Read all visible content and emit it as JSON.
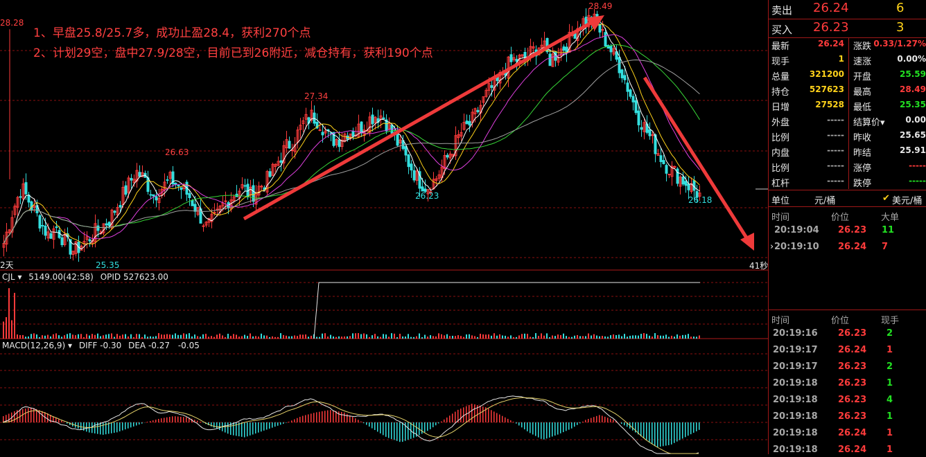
{
  "annotations": {
    "line1": "1、早盘25.8/25.7多，成功止盈28.4，获利270个点",
    "line2": "2、计划29空，盘中27.9/28空，目前已到26附近，减仓持有，获利190个点"
  },
  "chart_labels": {
    "left_top": "28.28",
    "left_bottom": "2天",
    "p2663": "26.63",
    "p2535": "25.35",
    "p2734": "27.34",
    "p2623": "26.23",
    "p2849": "28.49",
    "p2618": "26.18",
    "countdown": "41秒"
  },
  "volume_panel": {
    "name": "CJL",
    "dropdown": "▾",
    "value": "5149.00(42:58)",
    "opid": "OPID 527623.00"
  },
  "macd_panel": {
    "name": "MACD(12,26,9)",
    "dropdown": "▾",
    "diff": "DIFF -0.30",
    "dea": "DEA -0.27",
    "macd": "-0.05"
  },
  "colors": {
    "up": "#ff3b3b",
    "down": "#33dede",
    "ma5": "#ffffff",
    "ma10": "#ffd21a",
    "ma20": "#e040e0",
    "ma40": "#38d838",
    "ma60": "#a0a0a0",
    "arrow": "#ee3a3a",
    "grid": "#8b1111"
  },
  "chart_data": {
    "type": "candlestick",
    "high": 28.49,
    "low": 25.35,
    "annotated_points": [
      {
        "label": "28.28",
        "value": 28.28
      },
      {
        "label": "26.63",
        "value": 26.63
      },
      {
        "label": "25.35",
        "value": 25.35
      },
      {
        "label": "27.34",
        "value": 27.34
      },
      {
        "label": "26.23",
        "value": 26.23
      },
      {
        "label": "28.49",
        "value": 28.49
      },
      {
        "label": "26.18",
        "value": 26.18
      }
    ],
    "close_path": [
      25.6,
      26.0,
      26.3,
      26.1,
      25.9,
      25.7,
      25.8,
      25.6,
      25.5,
      25.6,
      25.7,
      25.8,
      25.9,
      26.1,
      26.3,
      26.5,
      26.4,
      26.2,
      26.3,
      26.4,
      26.3,
      26.2,
      26.0,
      25.8,
      25.9,
      26.1,
      26.2,
      26.3,
      26.2,
      26.3,
      26.4,
      26.6,
      26.8,
      26.9,
      27.1,
      27.2,
      27.1,
      26.9,
      26.9,
      27.0,
      27.0,
      27.1,
      27.2,
      27.2,
      27.0,
      26.8,
      26.6,
      26.4,
      26.3,
      26.4,
      26.6,
      26.8,
      27.0,
      27.1,
      27.3,
      27.5,
      27.6,
      27.8,
      27.9,
      27.9,
      28.0,
      28.1,
      27.9,
      28.0,
      28.1,
      28.3,
      28.4,
      28.4,
      28.2,
      28.0,
      27.8,
      27.5,
      27.2,
      27.0,
      26.8,
      26.6,
      26.5,
      26.4,
      26.3,
      26.2
    ],
    "macd_hist": [
      0.05,
      0.1,
      0.12,
      0.08,
      0.02,
      -0.04,
      -0.08,
      -0.1,
      -0.08,
      -0.04,
      0.0,
      0.03,
      0.05,
      0.04,
      0.0,
      -0.05,
      -0.1,
      -0.12,
      -0.08,
      -0.04,
      0.0,
      0.05,
      0.08,
      0.1,
      0.08,
      0.02,
      -0.05,
      -0.12,
      -0.16,
      -0.12,
      -0.06,
      0.02,
      0.1,
      0.15,
      0.12,
      0.06,
      0.0,
      -0.08,
      -0.14,
      -0.1,
      -0.05,
      0.02,
      0.06,
      0.02,
      -0.04,
      -0.12,
      -0.2,
      -0.18,
      -0.12,
      -0.06
    ]
  },
  "sidebar": {
    "sell": {
      "label": "卖出",
      "price": "26.24",
      "qty": "6"
    },
    "buy": {
      "label": "买入",
      "price": "26.23",
      "qty": "3"
    },
    "stats": [
      {
        "l": "最新",
        "v": "26.24",
        "vc": "red",
        "r": "涨跌",
        "rv": "0.33/1.27%",
        "rc": "red"
      },
      {
        "l": "现手",
        "v": "1",
        "vc": "yellow",
        "r": "速涨",
        "rv": "0.00%",
        "rc": "white"
      },
      {
        "l": "总量",
        "v": "321200",
        "vc": "yellow",
        "r": "开盘",
        "rv": "25.59",
        "rc": "green"
      },
      {
        "l": "持仓",
        "v": "527623",
        "vc": "yellow",
        "r": "最高",
        "rv": "28.49",
        "rc": "red"
      },
      {
        "l": "日增",
        "v": "27528",
        "vc": "yellow",
        "r": "最低",
        "rv": "25.35",
        "rc": "green"
      },
      {
        "l": "外盘",
        "v": "-----",
        "vc": "grey",
        "r": "结算价▾",
        "rv": "0.00",
        "rc": "white"
      },
      {
        "l": "比例",
        "v": "-----",
        "vc": "grey",
        "r": "昨收",
        "rv": "25.65",
        "rc": "white"
      },
      {
        "l": "内盘",
        "v": "-----",
        "vc": "grey",
        "r": "昨结",
        "rv": "25.91",
        "rc": "white"
      },
      {
        "l": "比例",
        "v": "-----",
        "vc": "grey",
        "r": "涨停",
        "rv": "-----",
        "rc": "red"
      },
      {
        "l": "杠杆",
        "v": "-----",
        "vc": "grey",
        "r": "跌停",
        "rv": "-----",
        "rc": "green"
      }
    ],
    "unit": {
      "label": "单位",
      "value1": "元/桶",
      "check": "✔",
      "value2": "美元/桶"
    },
    "big_orders": {
      "headers": [
        "时间",
        "价位",
        "大单"
      ],
      "rows": [
        {
          "arrow": "",
          "time": "20:19:04",
          "price": "26.23",
          "qty": "11",
          "qc": "green"
        },
        {
          "arrow": "›",
          "time": "20:19:10",
          "price": "26.24",
          "qty": "7",
          "qc": "red"
        }
      ]
    },
    "ticks": {
      "headers": [
        "时间",
        "价位",
        "现手"
      ],
      "rows": [
        {
          "time": "20:19:16",
          "price": "26.23",
          "qty": "2",
          "qc": "green"
        },
        {
          "time": "20:19:17",
          "price": "26.24",
          "qty": "1",
          "qc": "red"
        },
        {
          "time": "20:19:17",
          "price": "26.23",
          "qty": "2",
          "qc": "green"
        },
        {
          "time": "20:19:18",
          "price": "26.23",
          "qty": "1",
          "qc": "green"
        },
        {
          "time": "20:19:18",
          "price": "26.23",
          "qty": "4",
          "qc": "green"
        },
        {
          "time": "20:19:18",
          "price": "26.23",
          "qty": "1",
          "qc": "green"
        },
        {
          "time": "20:19:18",
          "price": "26.24",
          "qty": "1",
          "qc": "red"
        },
        {
          "time": "20:19:18",
          "price": "26.24",
          "qty": "1",
          "qc": "red"
        }
      ]
    }
  }
}
